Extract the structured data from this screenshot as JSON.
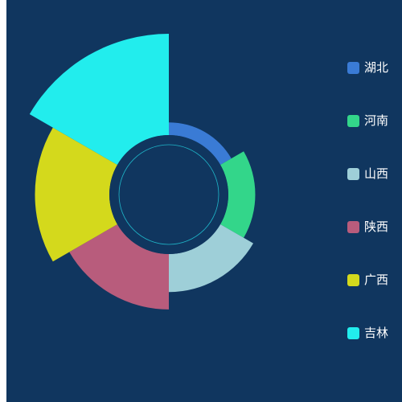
{
  "chart_data": {
    "type": "pie",
    "title": "",
    "rose_type": "radius",
    "categories": [
      "湖北",
      "河南",
      "山西",
      "陕西",
      "广西",
      "吉林"
    ],
    "values": [
      40,
      85,
      120,
      175,
      235,
      320
    ],
    "colors": [
      "#3a7bd5",
      "#33d68a",
      "#9ecfd8",
      "#b85c7c",
      "#d4d91c",
      "#22eded"
    ],
    "legend_position": "right"
  },
  "colors": {
    "background": "#10365f",
    "legend_text": "#ffffff",
    "inner_ring": "#10365f",
    "inner_ring_line": "#1fb6c9"
  }
}
